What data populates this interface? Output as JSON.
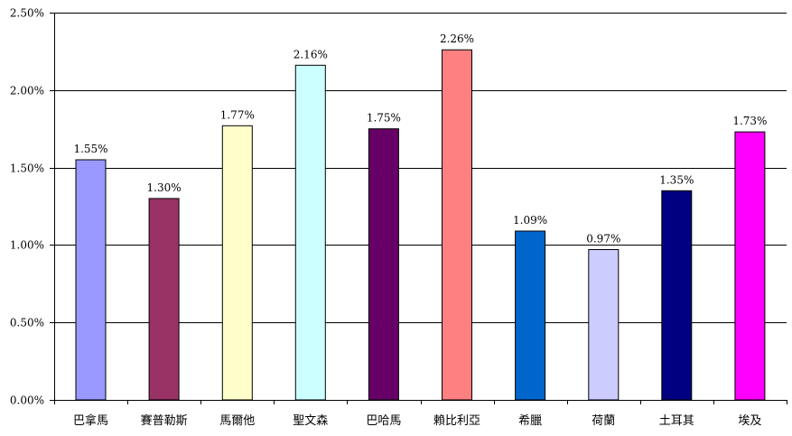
{
  "chart_data": {
    "type": "bar",
    "categories": [
      "巴拿馬",
      "賽普勒斯",
      "馬爾他",
      "聖文森",
      "巴哈馬",
      "賴比利亞",
      "希臘",
      "荷蘭",
      "土耳其",
      "埃及"
    ],
    "values": [
      1.55,
      1.3,
      1.77,
      2.16,
      1.75,
      2.26,
      1.09,
      0.97,
      1.35,
      1.73
    ],
    "value_labels": [
      "1.55%",
      "1.30%",
      "1.77%",
      "2.16%",
      "1.75%",
      "2.26%",
      "1.09%",
      "0.97%",
      "1.35%",
      "1.73%"
    ],
    "colors": [
      "#9999ff",
      "#993366",
      "#ffffcc",
      "#ccffff",
      "#660066",
      "#ff8080",
      "#0066cc",
      "#ccccff",
      "#000080",
      "#ff00ff"
    ],
    "yticks": [
      0,
      0.5,
      1.0,
      1.5,
      2.0,
      2.5
    ],
    "ytick_labels": [
      "0.00%",
      "0.50%",
      "1.00%",
      "1.50%",
      "2.00%",
      "2.50%"
    ],
    "ylim": [
      0,
      2.5
    ],
    "title": "",
    "xlabel": "",
    "ylabel": "",
    "grid": true,
    "legend": "none"
  }
}
